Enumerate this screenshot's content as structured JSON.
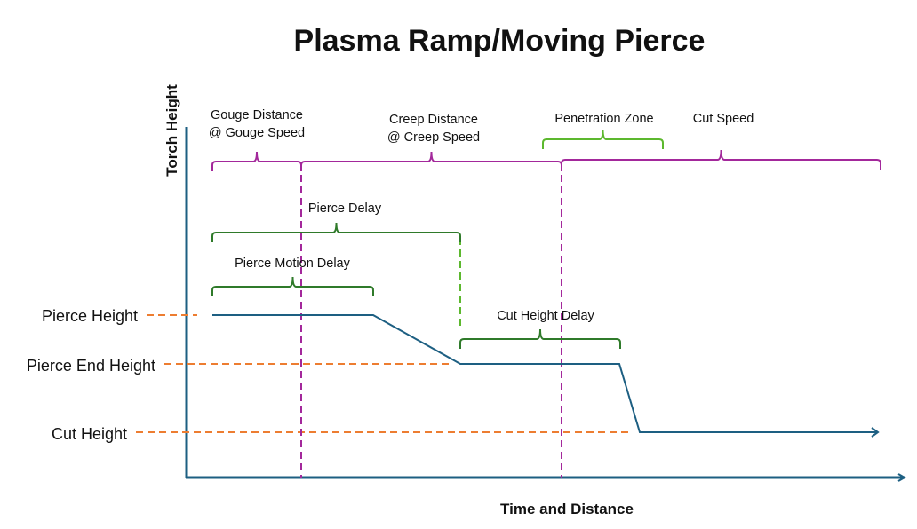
{
  "title": "Plasma Ramp/Moving Pierce",
  "axes": {
    "y_label": "Torch Height",
    "x_label": "Time and Distance"
  },
  "height_levels": [
    "Pierce Height",
    "Pierce End Height",
    "Cut Height"
  ],
  "spans": {
    "gouge": [
      "Gouge Distance",
      "@ Gouge Speed"
    ],
    "creep": [
      "Creep Distance",
      "@ Creep Speed"
    ],
    "penetration_zone": "Penetration Zone",
    "cut_speed": "Cut Speed",
    "pierce_delay": "Pierce Delay",
    "pierce_motion_delay": "Pierce Motion Delay",
    "cut_height_delay": "Cut Height Delay"
  },
  "colors": {
    "axis": "#1d5f82",
    "profile": "#1d5f82",
    "speed_brace": "#a3289b",
    "delay_brace": "#2f7a2a",
    "zone_brace": "#5cb82e",
    "level_guide": "#ed7d31"
  }
}
